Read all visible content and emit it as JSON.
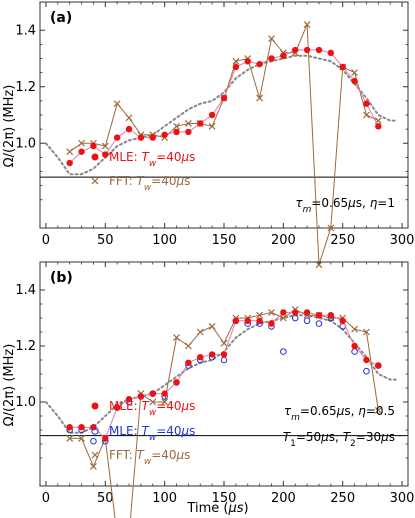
{
  "figure": {
    "xlabel": "Time (",
    "xlabel_unit": "μs",
    "xlabel_close": ")",
    "ylabel": "Ω/(2π) (MHz)"
  },
  "colors": {
    "mle": "#ee1111",
    "mle_open": "#2233dd",
    "fft": "#9c6a3c",
    "dotted": "#888888",
    "ref_line": "#000000"
  },
  "chart_data": [
    {
      "type": "line",
      "panel": "(a)",
      "title": "",
      "xlim": [
        -5,
        305
      ],
      "ylim": [
        0.7,
        1.5
      ],
      "xticks": [
        0,
        50,
        100,
        150,
        200,
        250,
        300
      ],
      "yticks": [
        1.0,
        1.2,
        1.4
      ],
      "hline": 0.88,
      "annotation": "τm=0.65μs, η=1",
      "series": [
        {
          "name": "MLE: Tw=40μs",
          "style": "mle",
          "x": [
            20,
            30,
            40,
            50,
            60,
            70,
            80,
            90,
            100,
            110,
            120,
            130,
            140,
            150,
            160,
            170,
            180,
            190,
            200,
            210,
            220,
            230,
            240,
            250,
            260,
            270,
            280
          ],
          "y": [
            0.93,
            0.97,
            0.99,
            0.96,
            1.02,
            1.05,
            1.02,
            1.02,
            1.03,
            1.04,
            1.04,
            1.07,
            1.1,
            1.16,
            1.27,
            1.29,
            1.28,
            1.3,
            1.31,
            1.33,
            1.33,
            1.33,
            1.32,
            1.27,
            1.22,
            1.14,
            1.06
          ]
        },
        {
          "name": "FFT: Tw=40μs",
          "style": "fft",
          "x": [
            20,
            30,
            40,
            50,
            60,
            70,
            80,
            90,
            100,
            110,
            120,
            130,
            140,
            150,
            160,
            170,
            180,
            190,
            200,
            210,
            220,
            230,
            240,
            250,
            260,
            270,
            280
          ],
          "y": [
            0.97,
            1.0,
            1.0,
            0.99,
            1.14,
            1.09,
            1.03,
            1.03,
            1.02,
            1.06,
            1.07,
            1.07,
            1.06,
            1.16,
            1.29,
            1.3,
            1.16,
            1.37,
            1.32,
            1.32,
            1.42,
            0.57,
            0.7,
            1.27,
            1.25,
            1.1,
            1.08
          ]
        },
        {
          "name": "",
          "style": "dotted",
          "x": [
            0,
            10,
            20,
            30,
            40,
            50,
            60,
            70,
            80,
            90,
            100,
            110,
            120,
            130,
            140,
            150,
            160,
            170,
            180,
            190,
            200,
            210,
            220,
            230,
            240,
            250,
            260,
            270,
            280,
            290,
            295
          ],
          "y": [
            1.0,
            0.95,
            0.89,
            0.89,
            0.91,
            0.95,
            0.99,
            1.01,
            1.02,
            1.03,
            1.06,
            1.09,
            1.12,
            1.14,
            1.15,
            1.18,
            1.23,
            1.26,
            1.28,
            1.29,
            1.3,
            1.31,
            1.31,
            1.3,
            1.29,
            1.26,
            1.21,
            1.16,
            1.1,
            1.08,
            1.08
          ]
        }
      ]
    },
    {
      "type": "line",
      "panel": "(b)",
      "title": "",
      "xlim": [
        -5,
        305
      ],
      "ylim": [
        0.7,
        1.5
      ],
      "xticks": [
        0,
        50,
        100,
        150,
        200,
        250,
        300
      ],
      "yticks": [
        1.0,
        1.2,
        1.4
      ],
      "hline": 0.88,
      "annotation": "τm=0.65μs, η=0.5",
      "annotation2": "T1=50μs, T2=30μs",
      "series": [
        {
          "name": "MLE: Tw=40μs",
          "style": "mle",
          "x": [
            20,
            30,
            40,
            50,
            60,
            70,
            80,
            90,
            100,
            110,
            120,
            130,
            140,
            150,
            160,
            170,
            180,
            190,
            200,
            210,
            220,
            230,
            240,
            250,
            260,
            270,
            280
          ],
          "y": [
            0.91,
            0.91,
            0.91,
            0.87,
            0.98,
            1.01,
            1.02,
            1.03,
            1.03,
            1.07,
            1.14,
            1.16,
            1.17,
            1.17,
            1.29,
            1.29,
            1.29,
            1.28,
            1.32,
            1.32,
            1.32,
            1.31,
            1.31,
            1.29,
            1.2,
            1.15,
            1.13
          ]
        },
        {
          "name": "MLE: Tw=40μs",
          "style": "mle_open",
          "x": [
            20,
            30,
            40,
            50,
            60,
            70,
            80,
            90,
            100,
            110,
            120,
            130,
            140,
            150,
            160,
            170,
            180,
            190,
            200,
            210,
            220,
            230,
            240,
            250,
            260,
            270,
            280
          ],
          "y": [
            0.9,
            0.9,
            0.86,
            0.86,
            0.98,
            1.0,
            1.02,
            1.03,
            1.02,
            1.07,
            1.13,
            1.15,
            1.16,
            1.15,
            1.29,
            1.28,
            1.28,
            1.27,
            1.18,
            1.3,
            1.29,
            1.28,
            1.3,
            1.27,
            1.18,
            1.11,
            1.13
          ]
        },
        {
          "name": "FFT: Tw=40μs",
          "style": "fft",
          "x": [
            20,
            30,
            40,
            50,
            60,
            70,
            80,
            90,
            100,
            110,
            120,
            130,
            140,
            150,
            160,
            170,
            180,
            190,
            200,
            210,
            220,
            230,
            240,
            250,
            260,
            270,
            280
          ],
          "y": [
            0.87,
            0.87,
            0.77,
            0.87,
            0.52,
            0.52,
            1.03,
            1.0,
            1.0,
            1.23,
            1.2,
            1.25,
            1.27,
            1.21,
            1.3,
            1.3,
            1.31,
            1.32,
            1.3,
            1.33,
            1.31,
            1.31,
            1.3,
            1.3,
            1.26,
            1.25,
            0.97
          ]
        },
        {
          "name": "",
          "style": "dotted",
          "x": [
            0,
            10,
            20,
            30,
            40,
            50,
            60,
            70,
            80,
            90,
            100,
            110,
            120,
            130,
            140,
            150,
            160,
            170,
            180,
            190,
            200,
            210,
            220,
            230,
            240,
            250,
            260,
            270,
            280,
            290,
            295
          ],
          "y": [
            1.0,
            0.95,
            0.89,
            0.89,
            0.91,
            0.95,
            0.99,
            1.01,
            1.02,
            1.03,
            1.06,
            1.09,
            1.12,
            1.14,
            1.15,
            1.18,
            1.23,
            1.26,
            1.28,
            1.29,
            1.3,
            1.31,
            1.31,
            1.3,
            1.29,
            1.26,
            1.21,
            1.16,
            1.1,
            1.08,
            1.08
          ]
        }
      ]
    }
  ]
}
